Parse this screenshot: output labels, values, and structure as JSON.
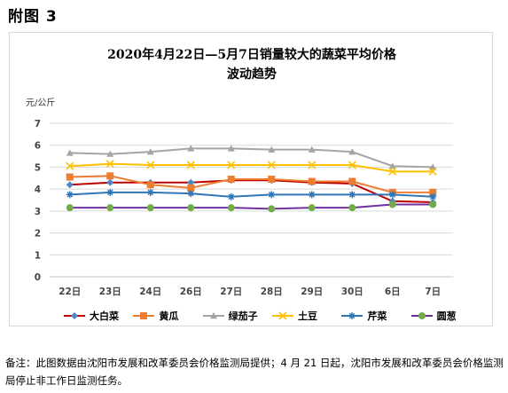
{
  "heading": "附图 3",
  "footnote": "备注：此图数据由沈阳市发展和改革委员会价格监测局提供；4 月 21 日起，沈阳市发展和改革委员会价格监测局停止非工作日监测任务。",
  "chart_data": {
    "type": "line",
    "title": "2020年4月22日—5月7日销量较大的蔬菜平均价格",
    "subtitle": "波动趋势",
    "ylabel": "元/公斤",
    "xlabel": "",
    "ylim": [
      0,
      7
    ],
    "yticks": [
      0,
      1,
      2,
      3,
      4,
      5,
      6,
      7
    ],
    "grid": true,
    "legend_position": "bottom",
    "categories": [
      "22日",
      "23日",
      "24日",
      "26日",
      "27日",
      "28日",
      "29日",
      "30日",
      "6日",
      "7日"
    ],
    "series": [
      {
        "name": "大白菜",
        "color": "#c00000",
        "marker": "diamond",
        "marker_color": "#4a86c8",
        "values": [
          4.2,
          4.3,
          4.3,
          4.3,
          4.4,
          4.4,
          4.3,
          4.25,
          3.45,
          3.4
        ]
      },
      {
        "name": "黄瓜",
        "color": "#ed7d31",
        "marker": "square",
        "marker_color": "#ed7d31",
        "values": [
          4.55,
          4.6,
          4.2,
          4.05,
          4.45,
          4.45,
          4.35,
          4.35,
          3.85,
          3.85
        ]
      },
      {
        "name": "绿茄子",
        "color": "#a5a5a5",
        "marker": "triangle",
        "marker_color": "#a5a5a5",
        "values": [
          5.65,
          5.6,
          5.7,
          5.85,
          5.85,
          5.8,
          5.8,
          5.7,
          5.05,
          5.0
        ]
      },
      {
        "name": "土豆",
        "color": "#ffc000",
        "marker": "x",
        "marker_color": "#ffc000",
        "values": [
          5.05,
          5.15,
          5.1,
          5.1,
          5.1,
          5.1,
          5.1,
          5.1,
          4.8,
          4.8
        ]
      },
      {
        "name": "芹菜",
        "color": "#2e75b6",
        "marker": "star",
        "marker_color": "#2e75b6",
        "values": [
          3.75,
          3.85,
          3.85,
          3.8,
          3.65,
          3.75,
          3.75,
          3.75,
          3.75,
          3.65
        ]
      },
      {
        "name": "圆葱",
        "color": "#7030a0",
        "marker": "circle",
        "marker_color": "#70ad47",
        "values": [
          3.15,
          3.15,
          3.15,
          3.15,
          3.15,
          3.1,
          3.15,
          3.15,
          3.3,
          3.3
        ]
      }
    ]
  }
}
